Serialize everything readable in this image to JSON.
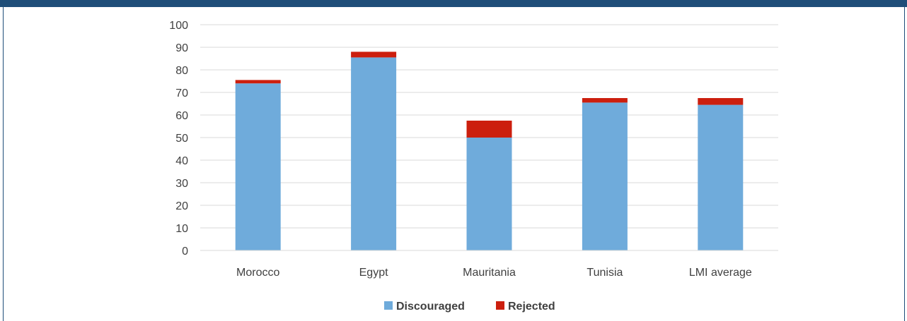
{
  "colors": {
    "discouraged": "#6fabdb",
    "rejected": "#cc1f0e",
    "frame": "#1f4e79",
    "grid": "#d9d9d9"
  },
  "chart_data": {
    "type": "bar",
    "stacked": true,
    "categories": [
      "Morocco",
      "Egypt",
      "Mauritania",
      "Tunisia",
      "LMI average"
    ],
    "series": [
      {
        "name": "Discouraged",
        "values": [
          74,
          85.5,
          50,
          65.5,
          64.5
        ]
      },
      {
        "name": "Rejected",
        "values": [
          1.5,
          2.5,
          7.5,
          2,
          3
        ]
      }
    ],
    "title": "",
    "xlabel": "",
    "ylabel": "",
    "ylim": [
      0,
      100
    ],
    "yticks": [
      "0",
      "10",
      "20",
      "30",
      "40",
      "50",
      "60",
      "70",
      "80",
      "90",
      "100"
    ],
    "grid": true,
    "legend": "bottom-center"
  }
}
